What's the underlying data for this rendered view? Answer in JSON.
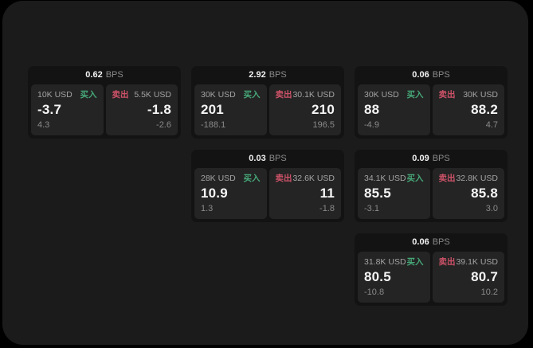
{
  "labels": {
    "buy": "买入",
    "sell": "卖出",
    "bps_unit": "BPS"
  },
  "colors": {
    "buy_green": "#46a878",
    "sell_red": "#cd5268",
    "panel_bg": "#1b1b1b",
    "card_bg": "#131313",
    "tile_bg": "#242424",
    "page_bg": "#000000"
  },
  "cards": [
    {
      "bps": "0.62",
      "col": 1,
      "row": 1,
      "buy": {
        "amount": "10K USD",
        "price": "-3.7",
        "delta": "4.3"
      },
      "sell": {
        "amount": "5.5K USD",
        "price": "-1.8",
        "delta": "-2.6"
      }
    },
    {
      "bps": "2.92",
      "col": 2,
      "row": 1,
      "buy": {
        "amount": "30K USD",
        "price": "201",
        "delta": "-188.1"
      },
      "sell": {
        "amount": "30.1K USD",
        "price": "210",
        "delta": "196.5"
      }
    },
    {
      "bps": "0.06",
      "col": 3,
      "row": 1,
      "buy": {
        "amount": "30K USD",
        "price": "88",
        "delta": "-4.9"
      },
      "sell": {
        "amount": "30K USD",
        "price": "88.2",
        "delta": "4.7"
      }
    },
    {
      "bps": "0.03",
      "col": 2,
      "row": 2,
      "buy": {
        "amount": "28K USD",
        "price": "10.9",
        "delta": "1.3"
      },
      "sell": {
        "amount": "32.6K USD",
        "price": "11",
        "delta": "-1.8"
      }
    },
    {
      "bps": "0.09",
      "col": 3,
      "row": 2,
      "buy": {
        "amount": "34.1K USD",
        "price": "85.5",
        "delta": "-3.1"
      },
      "sell": {
        "amount": "32.8K USD",
        "price": "85.8",
        "delta": "3.0"
      }
    },
    {
      "bps": "0.06",
      "col": 3,
      "row": 3,
      "buy": {
        "amount": "31.8K USD",
        "price": "80.5",
        "delta": "-10.8"
      },
      "sell": {
        "amount": "39.1K USD",
        "price": "80.7",
        "delta": "10.2"
      }
    }
  ]
}
